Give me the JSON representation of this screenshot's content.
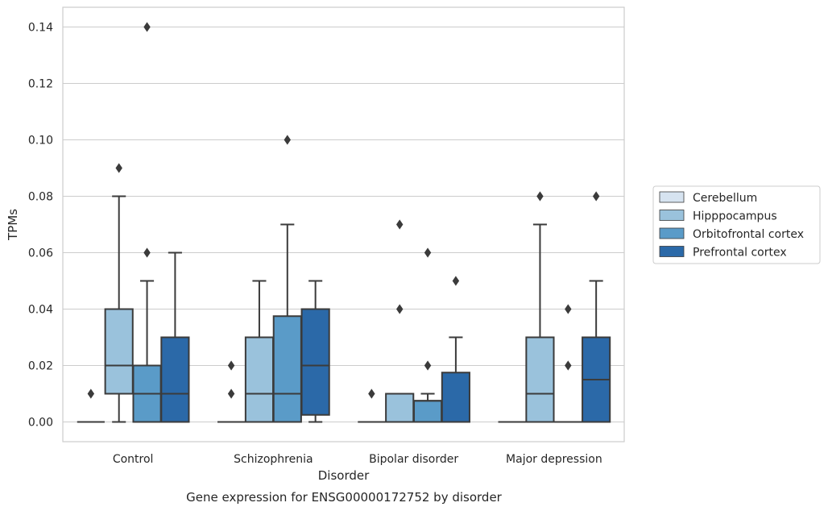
{
  "chart_data": {
    "type": "boxplot",
    "xlabel": "Disorder",
    "ylabel": "TPMs",
    "caption": "Gene expression for ENSG00000172752 by disorder",
    "ylim": [
      -0.007,
      0.147
    ],
    "yticks": [
      0.0,
      0.02,
      0.04,
      0.06,
      0.08,
      0.1,
      0.12,
      0.14
    ],
    "ytick_labels": [
      "0.00",
      "0.02",
      "0.04",
      "0.06",
      "0.08",
      "0.10",
      "0.12",
      "0.14"
    ],
    "grid": "horizontal",
    "legend_position": "right",
    "categories": [
      "Control",
      "Schizophrenia",
      "Bipolar disorder",
      "Major depression"
    ],
    "series": [
      {
        "name": "Cerebellum",
        "color": "#d6e3f0",
        "boxes": [
          {
            "q1": 0,
            "median": 0,
            "q3": 0,
            "whisker_low": 0,
            "whisker_high": 0,
            "outliers": [
              0.01
            ]
          },
          {
            "q1": 0,
            "median": 0,
            "q3": 0,
            "whisker_low": 0,
            "whisker_high": 0,
            "outliers": [
              0.01,
              0.02
            ]
          },
          {
            "q1": 0,
            "median": 0,
            "q3": 0,
            "whisker_low": 0,
            "whisker_high": 0,
            "outliers": [
              0.01
            ]
          },
          {
            "q1": 0,
            "median": 0,
            "q3": 0,
            "whisker_low": 0,
            "whisker_high": 0,
            "outliers": []
          }
        ]
      },
      {
        "name": "Hipppocampus",
        "color": "#9ac2dc",
        "boxes": [
          {
            "q1": 0.01,
            "median": 0.02,
            "q3": 0.04,
            "whisker_low": 0,
            "whisker_high": 0.08,
            "outliers": [
              0.09
            ]
          },
          {
            "q1": 0,
            "median": 0.01,
            "q3": 0.03,
            "whisker_low": 0,
            "whisker_high": 0.05,
            "outliers": []
          },
          {
            "q1": 0,
            "median": 0,
            "q3": 0.01,
            "whisker_low": 0,
            "whisker_high": 0.01,
            "outliers": [
              0.04,
              0.07
            ]
          },
          {
            "q1": 0,
            "median": 0.01,
            "q3": 0.03,
            "whisker_low": 0,
            "whisker_high": 0.07,
            "outliers": [
              0.08
            ]
          }
        ]
      },
      {
        "name": "Orbitofrontal cortex",
        "color": "#5a9bc8",
        "boxes": [
          {
            "q1": 0,
            "median": 0.01,
            "q3": 0.02,
            "whisker_low": 0,
            "whisker_high": 0.05,
            "outliers": [
              0.06,
              0.14
            ]
          },
          {
            "q1": 0,
            "median": 0.01,
            "q3": 0.0375,
            "whisker_low": 0,
            "whisker_high": 0.07,
            "outliers": [
              0.1
            ]
          },
          {
            "q1": 0,
            "median": 0.0075,
            "q3": 0.0075,
            "whisker_low": 0,
            "whisker_high": 0.01,
            "outliers": [
              0.02,
              0.06
            ]
          },
          {
            "q1": 0,
            "median": 0,
            "q3": 0,
            "whisker_low": 0,
            "whisker_high": 0,
            "outliers": [
              0.02,
              0.04
            ]
          }
        ]
      },
      {
        "name": "Prefrontal cortex",
        "color": "#2b69a8",
        "boxes": [
          {
            "q1": 0,
            "median": 0.01,
            "q3": 0.03,
            "whisker_low": 0,
            "whisker_high": 0.06,
            "outliers": []
          },
          {
            "q1": 0.0025,
            "median": 0.02,
            "q3": 0.04,
            "whisker_low": 0,
            "whisker_high": 0.05,
            "outliers": []
          },
          {
            "q1": 0,
            "median": 0,
            "q3": 0.0175,
            "whisker_low": 0,
            "whisker_high": 0.03,
            "outliers": [
              0.05
            ]
          },
          {
            "q1": 0,
            "median": 0.015,
            "q3": 0.03,
            "whisker_low": 0,
            "whisker_high": 0.05,
            "outliers": [
              0.08
            ]
          }
        ]
      }
    ]
  }
}
